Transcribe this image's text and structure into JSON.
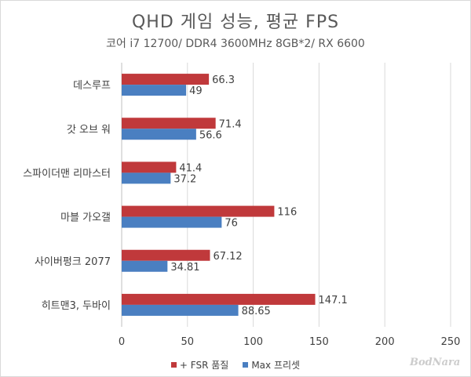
{
  "chart_data": {
    "type": "bar",
    "orientation": "horizontal",
    "title": "QHD 게임 성능, 평균 FPS",
    "subtitle": "코어 i7 12700/ DDR4 3600MHz 8GB*2/ RX 6600",
    "categories": [
      "데스루프",
      "갓 오브 워",
      "스파이더맨 리마스터",
      "마블 가오갤",
      "사이버펑크 2077",
      "히트맨3, 두바이"
    ],
    "series": [
      {
        "name": "+ FSR 품질",
        "color": "#c0393b",
        "values": [
          66.3,
          71.4,
          41.4,
          116,
          67.12,
          147.1
        ],
        "labels": [
          "66.3",
          "71.4",
          "41.4",
          "116",
          "67.12",
          "147.1"
        ]
      },
      {
        "name": "Max 프리셋",
        "color": "#4a7fc1",
        "values": [
          49,
          56.6,
          37.2,
          76,
          34.81,
          88.65
        ],
        "labels": [
          "49",
          "56.6",
          "37.2",
          "76",
          "34.81",
          "88.65"
        ]
      }
    ],
    "xlim": [
      0,
      250
    ],
    "ticks": [
      "0",
      "50",
      "100",
      "150",
      "200",
      "250"
    ],
    "tick_values": [
      0,
      50,
      100,
      150,
      200,
      250
    ],
    "grid": true,
    "legend_position": "bottom"
  },
  "watermark": "BodNara"
}
